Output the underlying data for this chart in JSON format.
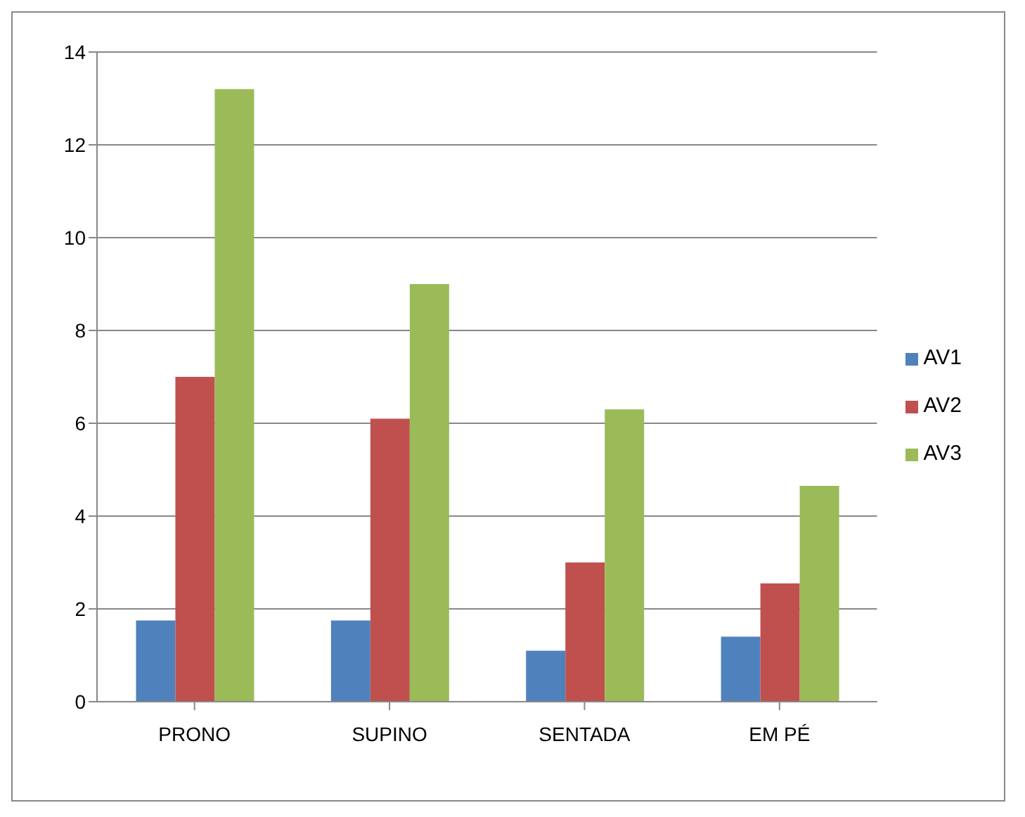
{
  "chart_data": {
    "type": "bar",
    "categories": [
      "PRONO",
      "SUPINO",
      "SENTADA",
      "EM PÉ"
    ],
    "series": [
      {
        "name": "AV1",
        "color": "#4f81bd",
        "values": [
          1.75,
          1.75,
          1.1,
          1.4
        ]
      },
      {
        "name": "AV2",
        "color": "#c0504d",
        "values": [
          7.0,
          6.1,
          3.0,
          2.55
        ]
      },
      {
        "name": "AV3",
        "color": "#9bbb59",
        "values": [
          13.2,
          9.0,
          6.3,
          4.65
        ]
      }
    ],
    "ylim": [
      0,
      14
    ],
    "yticks": [
      0,
      2,
      4,
      6,
      8,
      10,
      12,
      14
    ],
    "grid": "y",
    "legend": "right"
  }
}
